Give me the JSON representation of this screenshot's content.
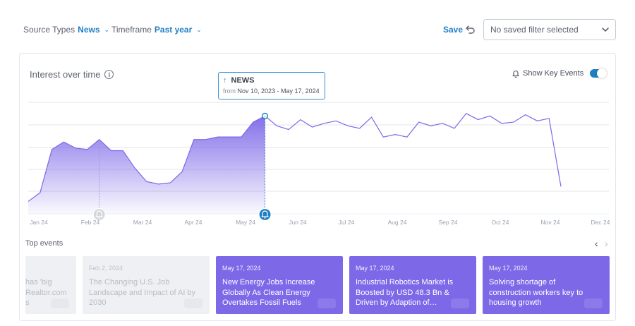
{
  "filters": {
    "source_label": "Source Types",
    "source_value": "News",
    "timeframe_label": "Timeframe",
    "timeframe_value": "Past year"
  },
  "save_label": "Save",
  "saved_filter_placeholder": "No saved filter selected",
  "card": {
    "title": "Interest over time",
    "show_key_events_label": "Show Key Events",
    "show_key_events_on": true
  },
  "tooltip": {
    "title": "NEWS",
    "from_label": "from",
    "range": "Nov 10, 2023 - May 17, 2024"
  },
  "colors": {
    "accent": "#1f7fc4",
    "line": "#7d68e8",
    "card_active": "#7d68e8"
  },
  "chart_data": {
    "type": "area",
    "x_tick_labels": [
      "Jan 24",
      "Feb 24",
      "Mar 24",
      "Apr 24",
      "May 24",
      "Jun 24",
      "Jul 24",
      "Aug 24",
      "Sep 24",
      "Oct 24",
      "Nov 24",
      "Dec 24"
    ],
    "values": [
      10,
      17,
      52,
      58,
      53,
      52,
      60,
      51,
      51,
      37,
      26,
      24,
      25,
      34,
      60,
      60,
      62,
      62,
      62,
      74,
      79,
      71,
      68,
      76,
      70,
      73,
      75,
      71,
      69,
      78,
      62,
      64,
      62,
      74,
      71,
      73,
      69,
      81,
      76,
      79,
      73,
      74,
      80,
      75,
      77,
      22
    ],
    "highlight_until_index": 20,
    "key_event_indices": [
      6,
      20
    ],
    "grid": true,
    "ylim": [
      0,
      90
    ]
  },
  "top_events": {
    "title": "Top events",
    "items": [
      {
        "date": "",
        "title": "has 'big\nRealtor.com\ns",
        "state": "faded"
      },
      {
        "date": "Feb 2, 2024",
        "title": "The Changing U.S. Job Landscape and Impact of AI by 2030",
        "state": "faded"
      },
      {
        "date": "May 17, 2024",
        "title": "New Energy Jobs Increase Globally As Clean Energy Overtakes Fossil Fuels",
        "state": "active"
      },
      {
        "date": "May 17, 2024",
        "title": "Industrial Robotics Market is Boosted by USD 48.3 Bn & Driven by Adaption of…",
        "state": "active"
      },
      {
        "date": "May 17, 2024",
        "title": "Solving shortage of construction workers key to housing growth",
        "state": "active"
      }
    ]
  }
}
